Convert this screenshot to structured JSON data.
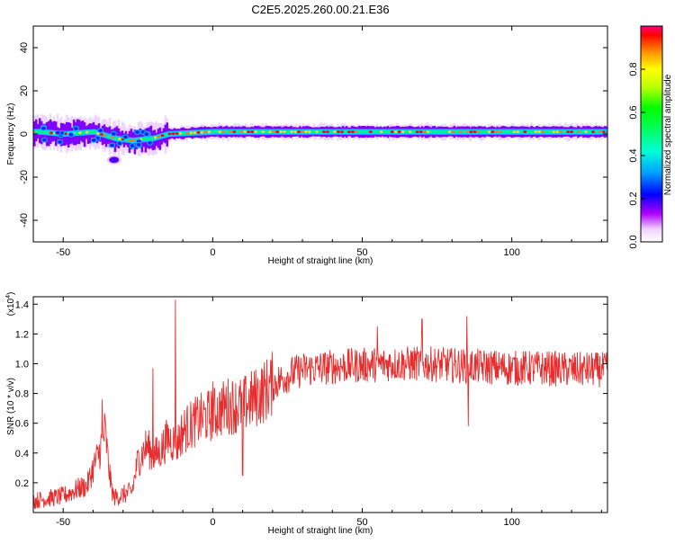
{
  "title": "C2E5.2025.260.00.21.E36",
  "chart_data": [
    {
      "type": "heatmap",
      "xlabel": "Height of straight line (km)",
      "ylabel": "Frequency (Hz)",
      "xlim": [
        -60,
        132
      ],
      "ylim": [
        -50,
        50
      ],
      "x_ticks": [
        -50,
        0,
        50,
        100
      ],
      "y_ticks": [
        -40,
        -20,
        0,
        20,
        40
      ],
      "colorbar": {
        "label": "Normalized spectral amplitude",
        "range": [
          0.0,
          1.0
        ],
        "ticks": [
          0.0,
          0.2,
          0.4,
          0.6,
          0.8
        ]
      },
      "ridge": {
        "description_values": [
          {
            "x": -58,
            "freq": 1
          },
          {
            "x": -50,
            "freq": 0
          },
          {
            "x": -40,
            "freq": 1
          },
          {
            "x": -33,
            "freq": -2
          },
          {
            "x": -27,
            "freq": -3
          },
          {
            "x": -20,
            "freq": -2
          },
          {
            "x": -15,
            "freq": 0
          },
          {
            "x": 0,
            "freq": 1
          },
          {
            "x": 50,
            "freq": 1
          },
          {
            "x": 100,
            "freq": 1
          },
          {
            "x": 132,
            "freq": 1
          }
        ],
        "isolated_blob": {
          "x": -33,
          "freq": -12
        }
      }
    },
    {
      "type": "line",
      "xlabel": "Height of straight line (km)",
      "ylabel": "SNR (10 * v/v)",
      "exponent_label": "(x10",
      "exponent_value": "4",
      "exponent_close": ")",
      "xlim": [
        -60,
        132
      ],
      "ylim": [
        0,
        1.45
      ],
      "x_ticks": [
        -50,
        0,
        50,
        100
      ],
      "y_ticks": [
        0.2,
        0.4,
        0.6,
        0.8,
        1.0,
        1.2,
        1.4
      ],
      "line_color": "#e62e2e",
      "trend": [
        [
          -60,
          0.08
        ],
        [
          -50,
          0.11
        ],
        [
          -45,
          0.16
        ],
        [
          -42,
          0.18
        ],
        [
          -40,
          0.3
        ],
        [
          -38,
          0.4
        ],
        [
          -36,
          0.55
        ],
        [
          -35,
          0.35
        ],
        [
          -34,
          0.18
        ],
        [
          -33,
          0.1
        ],
        [
          -30,
          0.12
        ],
        [
          -27,
          0.14
        ],
        [
          -25,
          0.35
        ],
        [
          -22,
          0.45
        ],
        [
          -20,
          0.38
        ],
        [
          -18,
          0.4
        ],
        [
          -15,
          0.5
        ],
        [
          -12,
          0.46
        ],
        [
          -10,
          0.55
        ],
        [
          -5,
          0.62
        ],
        [
          0,
          0.66
        ],
        [
          5,
          0.72
        ],
        [
          10,
          0.72
        ],
        [
          15,
          0.78
        ],
        [
          20,
          0.86
        ],
        [
          25,
          0.92
        ],
        [
          30,
          0.96
        ],
        [
          40,
          0.98
        ],
        [
          50,
          0.99
        ],
        [
          60,
          1.0
        ],
        [
          70,
          1.0
        ],
        [
          80,
          0.99
        ],
        [
          90,
          0.98
        ],
        [
          100,
          0.97
        ],
        [
          110,
          0.97
        ],
        [
          120,
          0.96
        ],
        [
          132,
          0.96
        ]
      ],
      "spikes": [
        {
          "x": -12.5,
          "y": 1.43
        },
        {
          "x": -20,
          "y": 0.97
        },
        {
          "x": -37,
          "y": 0.76
        },
        {
          "x": 0,
          "y": 0.88
        },
        {
          "x": 10,
          "y": 0.25
        },
        {
          "x": 55,
          "y": 1.25
        },
        {
          "x": 70,
          "y": 1.3
        },
        {
          "x": 85,
          "y": 1.32
        },
        {
          "x": 85.5,
          "y": 0.58
        }
      ]
    }
  ]
}
